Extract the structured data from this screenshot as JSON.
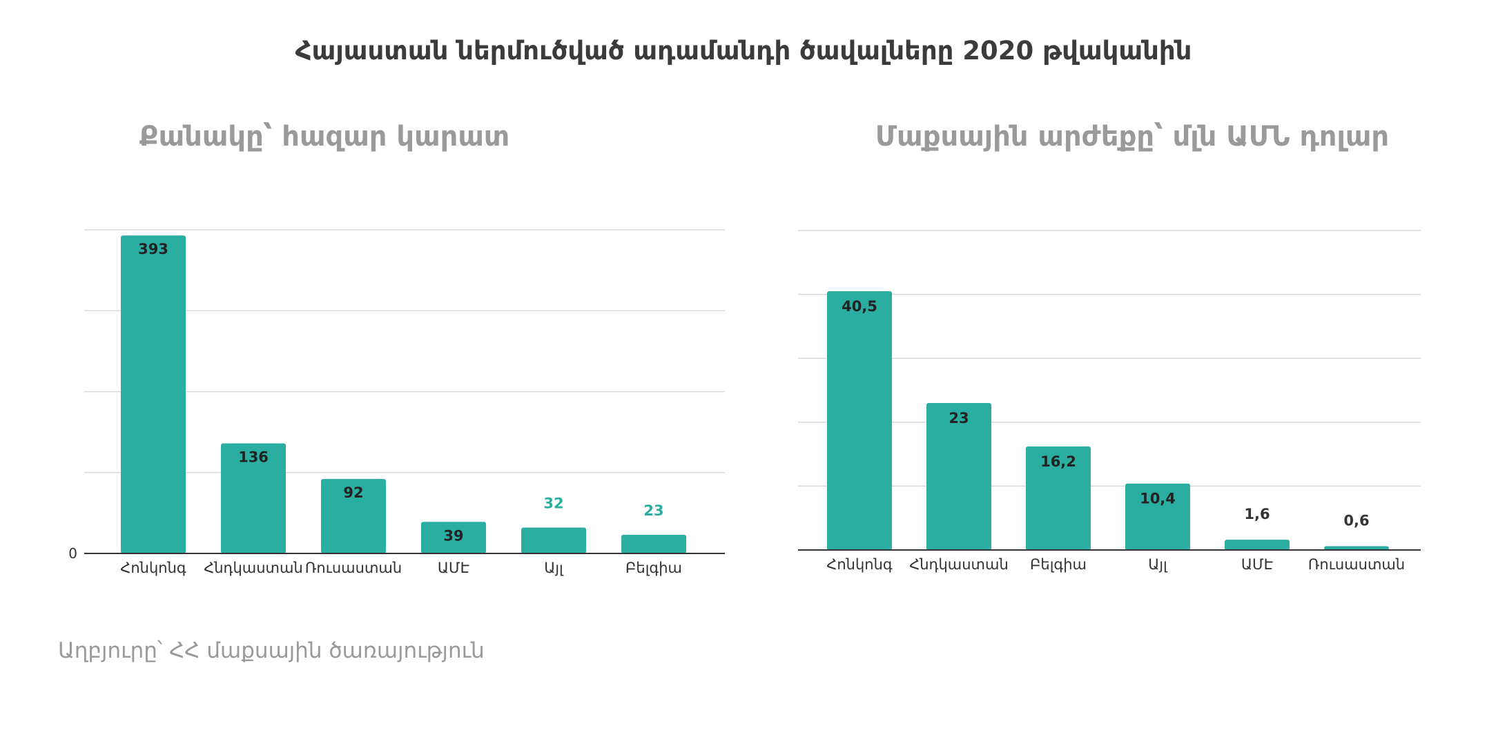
{
  "title": "Հայաստան ներմուծված ադամանդի ծավալները 2020 թվականին",
  "source": "Աղբյուրը՝ ՀՀ մաքսային ծառայություն",
  "colors": {
    "bar": "#2baea2",
    "grid": "#d9d9d9",
    "axis": "#333333",
    "label_inside": "#222222",
    "label_outside_left": "#2baea2",
    "label_outside_right": "#333333"
  },
  "chart_data": [
    {
      "type": "bar",
      "title": "Քանակը՝ հազար կարատ",
      "categories": [
        "Հոնկոնգ",
        "Հնդկաստան",
        "Ռուսաստան",
        "ԱՄԷ",
        "Այլ",
        "Բելգիա"
      ],
      "values": [
        393,
        136,
        92,
        39,
        32,
        23
      ],
      "value_labels": [
        "393",
        "136",
        "92",
        "39",
        "32",
        "23"
      ],
      "ylim": [
        0,
        400
      ],
      "y_ticks": [
        0,
        100,
        200,
        300,
        400
      ],
      "y_tick_labels": [
        "0",
        "",
        "",
        "",
        ""
      ],
      "grid": true,
      "xlabel": "",
      "ylabel": ""
    },
    {
      "type": "bar",
      "title": "Մաքսային արժեքը՝ մլն ԱՄՆ դոլար",
      "categories": [
        "Հոնկոնգ",
        "Հնդկաստան",
        "Բելգիա",
        "Այլ",
        "ԱՄԷ",
        "Ռուսաստան"
      ],
      "values": [
        40.5,
        23,
        16.2,
        10.4,
        1.6,
        0.6
      ],
      "value_labels": [
        "40,5",
        "23",
        "16,2",
        "10,4",
        "1,6",
        "0,6"
      ],
      "ylim": [
        0,
        50
      ],
      "y_ticks": [
        0,
        10,
        20,
        30,
        40,
        50
      ],
      "grid": true,
      "xlabel": "",
      "ylabel": ""
    }
  ]
}
